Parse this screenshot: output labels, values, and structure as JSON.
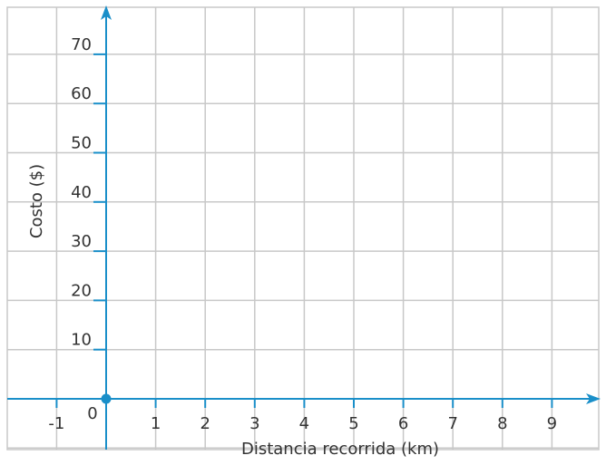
{
  "chart_data": {
    "type": "scatter",
    "title": "",
    "xlabel": "Distancia recorrida (km)",
    "ylabel": "Costo ($)",
    "xlim": [
      -2,
      10
    ],
    "ylim": [
      -10,
      80
    ],
    "grid": true,
    "x_ticks": [
      "-1",
      "1",
      "2",
      "3",
      "4",
      "5",
      "6",
      "7",
      "8",
      "9"
    ],
    "x_tick_values": [
      -1,
      1,
      2,
      3,
      4,
      5,
      6,
      7,
      8,
      9
    ],
    "y_ticks": [
      "10",
      "20",
      "30",
      "40",
      "50",
      "60",
      "70"
    ],
    "y_tick_values": [
      10,
      20,
      30,
      40,
      50,
      60,
      70
    ],
    "origin_label": "0",
    "points": [
      {
        "x": 0,
        "y": 0
      }
    ],
    "colors": {
      "axis": "#1a8fc9",
      "grid": "#c8c8c8",
      "text": "#333333"
    }
  }
}
